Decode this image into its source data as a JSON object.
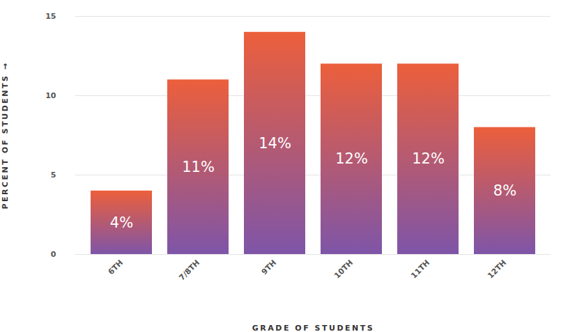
{
  "chart_data": {
    "type": "bar",
    "x_label": "GRADE OF STUDENTS",
    "y_label": "PERCENT OF STUDENTS",
    "categories": [
      "6TH",
      "7/8TH",
      "9TH",
      "10TH",
      "11TH",
      "12TH"
    ],
    "values": [
      4,
      11,
      14,
      12,
      12,
      8
    ],
    "value_labels": [
      "4%",
      "11%",
      "14%",
      "12%",
      "12%",
      "8%"
    ],
    "color": "#ec5f3b",
    "ylim": [
      0,
      15
    ],
    "yticks": [
      0,
      5,
      10,
      15
    ],
    "grid": true,
    "data_labels": true
  }
}
